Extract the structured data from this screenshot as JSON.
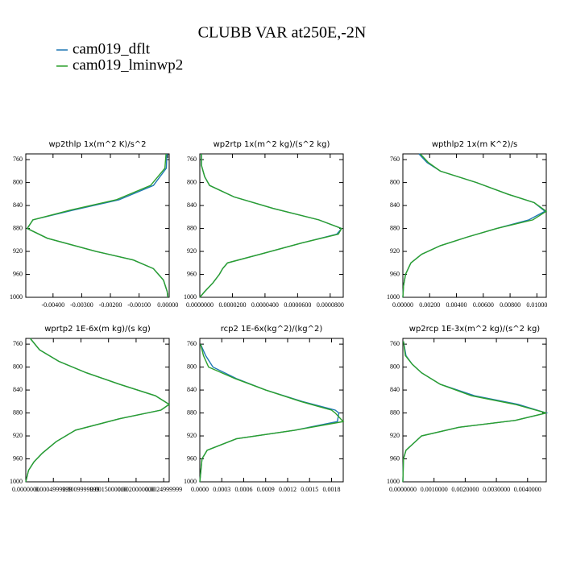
{
  "title": "CLUBB VAR at250E,-2N",
  "chart_data": [
    {
      "type": "line",
      "title": "wp2thlp  1x(m^2 K)/s^2",
      "y": [
        750,
        775,
        805,
        830,
        848,
        865,
        880,
        897,
        920,
        935,
        950,
        970,
        990,
        1000
      ],
      "ylim": [
        750,
        1000
      ],
      "y_inverted": true,
      "yticks": [
        760,
        800,
        840,
        880,
        920,
        960,
        1000
      ],
      "xlim": [
        -0.00495,
        5e-05
      ],
      "xticks": [
        {
          "value": -0.004,
          "label": "-0.00400"
        },
        {
          "value": -0.003,
          "label": "-0.00300"
        },
        {
          "value": -0.002,
          "label": "-0.00200"
        },
        {
          "value": -0.001,
          "label": "-0.00100"
        },
        {
          "value": 0,
          "label": "0.00000"
        }
      ],
      "series": [
        {
          "name": "cam019_dflt",
          "color": "#1f77b4",
          "values": [
            -3e-05,
            -5e-05,
            -0.0005,
            -0.0017,
            -0.0033,
            -0.0047,
            -0.0049,
            -0.0042,
            -0.0025,
            -0.0012,
            -0.0005,
            -0.00015,
            -2e-05,
            0
          ]
        },
        {
          "name": "cam019_lminwp2",
          "color": "#2ca02c",
          "values": [
            -6e-05,
            -0.0001,
            -0.0006,
            -0.0018,
            -0.0034,
            -0.0047,
            -0.0049,
            -0.0042,
            -0.0025,
            -0.0012,
            -0.0005,
            -0.00015,
            -2e-05,
            0
          ]
        }
      ]
    },
    {
      "type": "line",
      "title": "wp2rtp  1x(m^2 kg)/(s^2 kg)",
      "y": [
        750,
        770,
        790,
        805,
        825,
        845,
        865,
        880,
        890,
        905,
        925,
        940,
        950,
        960,
        975,
        990,
        1000
      ],
      "ylim": [
        750,
        1000
      ],
      "y_inverted": true,
      "yticks": [
        760,
        800,
        840,
        880,
        920,
        960,
        1000
      ],
      "xlim": [
        0,
        8.8e-05
      ],
      "xticks": [
        {
          "value": 0,
          "label": "0.0000000"
        },
        {
          "value": 2e-05,
          "label": "0.0000200"
        },
        {
          "value": 4e-05,
          "label": "0.0000400"
        },
        {
          "value": 6e-05,
          "label": "0.0000600"
        },
        {
          "value": 8e-05,
          "label": "0.0000800"
        }
      ],
      "series": [
        {
          "color": "#1f77b4",
          "values": [
            1e-06,
            1e-06,
            3e-06,
            6e-06,
            2.1e-05,
            4.5e-05,
            7.3e-05,
            8.7e-05,
            8.4e-05,
            6.3e-05,
            3.7e-05,
            1.7e-05,
            1.4e-05,
            1.2e-05,
            8e-06,
            3e-06,
            0
          ]
        },
        {
          "color": "#2ca02c",
          "values": [
            1e-06,
            1e-06,
            3e-06,
            6e-06,
            2.1e-05,
            4.5e-05,
            7.3e-05,
            8.7e-05,
            8.5e-05,
            6.3e-05,
            3.7e-05,
            1.7e-05,
            1.4e-05,
            1.2e-05,
            8e-06,
            3e-06,
            0
          ]
        }
      ]
    },
    {
      "type": "line",
      "title": "wpthlp2  1x(m K^2)/s",
      "y": [
        750,
        765,
        780,
        800,
        820,
        835,
        850,
        865,
        880,
        895,
        910,
        925,
        940,
        960,
        980,
        1000
      ],
      "ylim": [
        750,
        1000
      ],
      "y_inverted": true,
      "yticks": [
        760,
        800,
        840,
        880,
        920,
        960,
        1000
      ],
      "xlim": [
        0,
        0.0107
      ],
      "xticks": [
        {
          "value": 0,
          "label": "0.00000"
        },
        {
          "value": 0.002,
          "label": "0.00200"
        },
        {
          "value": 0.004,
          "label": "0.00400"
        },
        {
          "value": 0.006,
          "label": "0.00600"
        },
        {
          "value": 0.008,
          "label": "0.00800"
        },
        {
          "value": 0.01,
          "label": "0.01000"
        }
      ],
      "series": [
        {
          "color": "#1f77b4",
          "values": [
            0.0012,
            0.0018,
            0.0028,
            0.0055,
            0.0078,
            0.0098,
            0.0106,
            0.0094,
            0.007,
            0.0048,
            0.0028,
            0.0014,
            0.0006,
            0.0002,
            5e-05,
            0
          ]
        },
        {
          "color": "#2ca02c",
          "values": [
            0.0013,
            0.0019,
            0.0028,
            0.0055,
            0.0078,
            0.0098,
            0.0107,
            0.0097,
            0.007,
            0.0048,
            0.0028,
            0.0014,
            0.0006,
            0.0002,
            5e-05,
            0
          ]
        }
      ]
    },
    {
      "type": "line",
      "title": "wprtp2  1E-6x(m kg)/(s kg)",
      "y": [
        750,
        770,
        790,
        810,
        830,
        850,
        865,
        875,
        890,
        910,
        930,
        950,
        965,
        980,
        1000
      ],
      "ylim": [
        750,
        1000
      ],
      "y_inverted": true,
      "yticks": [
        760,
        800,
        840,
        880,
        920,
        960,
        1000
      ],
      "xlim": [
        0,
        0.0026
      ],
      "xticks": [
        {
          "value": 0,
          "label": "0.0000000"
        },
        {
          "value": 0.0005,
          "label": "0.0004999999"
        },
        {
          "value": 0.001,
          "label": "0.0009999999"
        },
        {
          "value": 0.0015,
          "label": "0.0015000000"
        },
        {
          "value": 0.002,
          "label": "0.0020000000"
        },
        {
          "value": 0.0025,
          "label": "0.0024999999"
        }
      ],
      "series": [
        {
          "color": "#1f77b4",
          "values": [
            8e-05,
            0.00025,
            0.0006,
            0.0011,
            0.0017,
            0.00235,
            0.0026,
            0.00245,
            0.0017,
            0.0009,
            0.00055,
            0.0003,
            0.00015,
            5e-05,
            0
          ]
        },
        {
          "color": "#2ca02c",
          "values": [
            8e-05,
            0.00025,
            0.0006,
            0.0011,
            0.0017,
            0.00235,
            0.0026,
            0.00245,
            0.0017,
            0.0009,
            0.00055,
            0.0003,
            0.00015,
            5e-05,
            0
          ]
        }
      ]
    },
    {
      "type": "line",
      "title": "rcp2  1E-6x(kg^2)/(kg^2)",
      "y": [
        760,
        780,
        800,
        820,
        840,
        860,
        875,
        880,
        895,
        910,
        925,
        945,
        960,
        1000
      ],
      "ylim": [
        750,
        1000
      ],
      "y_inverted": true,
      "yticks": [
        760,
        800,
        840,
        880,
        920,
        960,
        1000
      ],
      "xlim": [
        0,
        0.00196
      ],
      "xticks": [
        {
          "value": 0,
          "label": "0.0000"
        },
        {
          "value": 0.0003,
          "label": "0.0003"
        },
        {
          "value": 0.0006,
          "label": "0.0006"
        },
        {
          "value": 0.0009,
          "label": "0.0009"
        },
        {
          "value": 0.0012,
          "label": "0.0012"
        },
        {
          "value": 0.0015,
          "label": "0.0015"
        },
        {
          "value": 0.0018,
          "label": "0.0018"
        }
      ],
      "series": [
        {
          "color": "#1f77b4",
          "values": [
            1e-05,
            8e-05,
            0.00018,
            0.0005,
            0.0009,
            0.0014,
            0.00185,
            0.0019,
            0.00188,
            0.0013,
            0.0005,
            0.0001,
            3e-05,
            0
          ]
        },
        {
          "color": "#2ca02c",
          "values": [
            1e-05,
            5e-05,
            0.00012,
            0.00048,
            0.0009,
            0.00138,
            0.0018,
            0.00185,
            0.00196,
            0.0013,
            0.0005,
            0.0001,
            3e-05,
            0
          ]
        }
      ]
    },
    {
      "type": "line",
      "title": "wp2rcp  1E-3x(m^2 kg)/(s^2 kg)",
      "y": [
        755,
        780,
        795,
        810,
        830,
        850,
        865,
        880,
        893,
        905,
        920,
        945,
        960,
        1000
      ],
      "ylim": [
        750,
        1000
      ],
      "y_inverted": true,
      "yticks": [
        760,
        800,
        840,
        880,
        920,
        960,
        1000
      ],
      "xlim": [
        0,
        0.0046
      ],
      "xticks": [
        {
          "value": 0,
          "label": "0.0000000"
        },
        {
          "value": 0.001,
          "label": "0.0010000"
        },
        {
          "value": 0.002,
          "label": "0.0020000"
        },
        {
          "value": 0.003,
          "label": "0.0030000"
        },
        {
          "value": 0.004,
          "label": "0.0040000"
        }
      ],
      "series": [
        {
          "color": "#1f77b4",
          "values": [
            2e-05,
            0.0001,
            0.0003,
            0.0006,
            0.0012,
            0.0023,
            0.0037,
            0.0046,
            0.0036,
            0.0018,
            0.0006,
            0.0001,
            2e-05,
            0
          ]
        },
        {
          "color": "#2ca02c",
          "values": [
            2e-05,
            8e-05,
            0.0003,
            0.0006,
            0.0012,
            0.0022,
            0.0036,
            0.0046,
            0.0036,
            0.0018,
            0.0006,
            0.0001,
            2e-05,
            0
          ]
        }
      ]
    }
  ]
}
